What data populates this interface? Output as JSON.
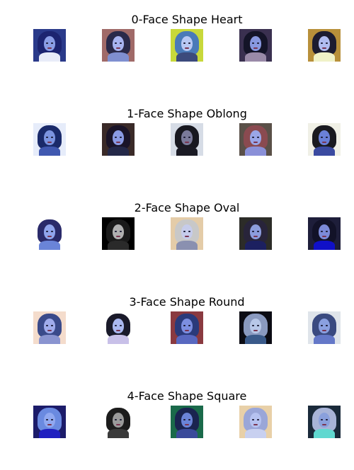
{
  "groups": [
    {
      "title": "0-Face Shape Heart",
      "images": [
        {
          "bg": "#2a3a8a",
          "hair": "#1c2470",
          "face": "#8a9ee6",
          "body": "#e8ecf8"
        },
        {
          "bg": "#a06a68",
          "hair": "#2a2a4a",
          "face": "#a8b4f0",
          "body": "#7f8fd0"
        },
        {
          "bg": "#c8d83a",
          "hair": "#4a7ab8",
          "face": "#b8c8f4",
          "body": "#3c4a7c"
        },
        {
          "bg": "#3a3050",
          "hair": "#141428",
          "face": "#8898e0",
          "body": "#9a8aa8"
        },
        {
          "bg": "#b8903a",
          "hair": "#1c1c30",
          "face": "#b0bcf0",
          "body": "#f0f2c8"
        }
      ]
    },
    {
      "title": "1-Face Shape Oblong",
      "images": [
        {
          "bg": "#e6ecfa",
          "hair": "#1a2a6a",
          "face": "#7c94e0",
          "body": "#4058b0"
        },
        {
          "bg": "#3a2a28",
          "hair": "#1a1428",
          "face": "#8a9ae4",
          "body": "#242848"
        },
        {
          "bg": "#d6dce6",
          "hair": "#181820",
          "face": "#7a7a9a",
          "body": "#1a1a24"
        },
        {
          "bg": "#5a5048",
          "hair": "#8a4a50",
          "face": "#9aa6e8",
          "body": "#8a90d8"
        },
        {
          "bg": "#f0f0e6",
          "hair": "#1a1a20",
          "face": "#6a80d8",
          "body": "#3a4aa0"
        }
      ]
    },
    {
      "title": "2-Face Shape Oval",
      "images": [
        {
          "bg": "#ffffff",
          "hair": "#2a2a6a",
          "face": "#90a4ec",
          "body": "#6a84d8"
        },
        {
          "bg": "#000000",
          "hair": "#1a1a1a",
          "face": "#b0b0b0",
          "body": "#2a2a2a"
        },
        {
          "bg": "#e4cca8",
          "hair": "#c8c8c8",
          "face": "#c6cceb",
          "body": "#8a90b0"
        },
        {
          "bg": "#2c2c28",
          "hair": "#28243a",
          "face": "#8c9cdc",
          "body": "#1c2060"
        },
        {
          "bg": "#1e1e3a",
          "hair": "#121228",
          "face": "#7c8ad8",
          "body": "#1010c8"
        }
      ]
    },
    {
      "title": "3-Face Shape Round",
      "images": [
        {
          "bg": "#f4dccc",
          "hair": "#3a4a8a",
          "face": "#a0acec",
          "body": "#8a94d0"
        },
        {
          "bg": "#ffffff",
          "hair": "#1a1a2a",
          "face": "#aab8f0",
          "body": "#c8c0e8"
        },
        {
          "bg": "#8a3a40",
          "hair": "#2a3a7a",
          "face": "#7c8ee0",
          "body": "#5868c0"
        },
        {
          "bg": "#0c0c14",
          "hair": "#8a9ac0",
          "face": "#b8c8e8",
          "body": "#3a5a8a"
        },
        {
          "bg": "#dfe4ea",
          "hair": "#3a4a80",
          "face": "#8aa0e0",
          "body": "#6478c8"
        }
      ]
    },
    {
      "title": "4-Face Shape Square",
      "images": [
        {
          "bg": "#1c1c6a",
          "hair": "#6a8ae0",
          "face": "#90a8f0",
          "body": "#2020c0"
        },
        {
          "bg": "#ffffff",
          "hair": "#1c1c1c",
          "face": "#9a9a9a",
          "body": "#3a3a3a"
        },
        {
          "bg": "#1a6a4a",
          "hair": "#1a2450",
          "face": "#6a84d8",
          "body": "#3a4a9a"
        },
        {
          "bg": "#e8d0a8",
          "hair": "#9aa6d8",
          "face": "#b6c2f0",
          "body": "#c8d0f0"
        },
        {
          "bg": "#1a2a3a",
          "hair": "#a8b4d8",
          "face": "#8aa0dc",
          "body": "#60d8d0"
        }
      ]
    }
  ]
}
